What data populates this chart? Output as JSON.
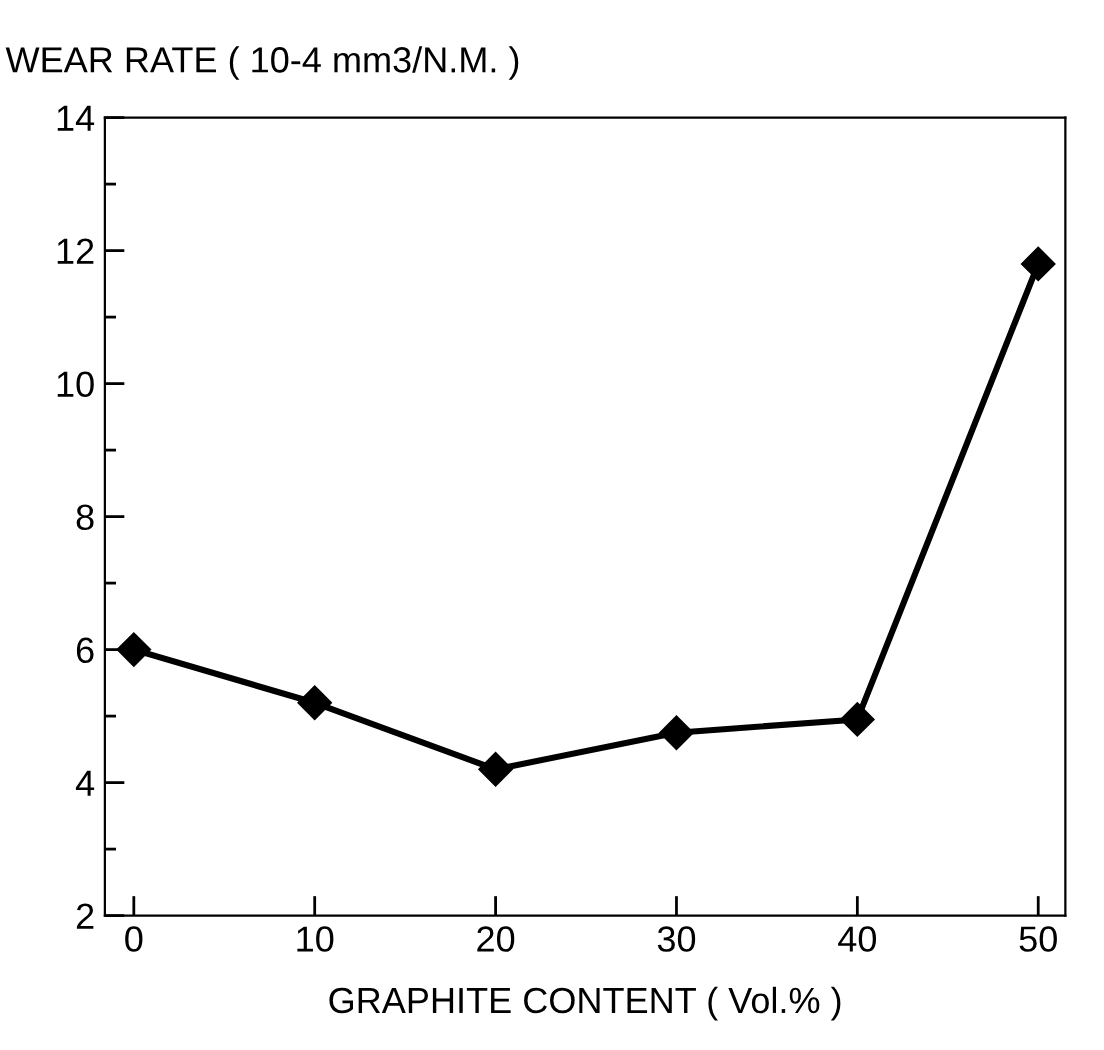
{
  "chart_data": {
    "type": "line",
    "ylabel": "WEAR RATE ( 10-4 mm3/N.M. )",
    "xlabel": "GRAPHITE CONTENT ( Vol.% )",
    "x": [
      0,
      10,
      20,
      30,
      40,
      50
    ],
    "series": [
      {
        "color": "#000000",
        "values": [
          6.0,
          5.2,
          4.2,
          4.75,
          4.95,
          11.8
        ]
      }
    ],
    "marker": "diamond",
    "line_style": "solid",
    "xlim": [
      -1.6,
      51.5
    ],
    "ylim": [
      2,
      14
    ],
    "xticks": [
      0,
      10,
      20,
      30,
      40,
      50
    ],
    "yticks": [
      2,
      {
        "value": 3,
        "label": null
      },
      4,
      {
        "value": 5,
        "label": null
      },
      6,
      {
        "value": 7,
        "label": null
      },
      8,
      {
        "value": 9,
        "label": null
      },
      10,
      {
        "value": 11,
        "label": null
      },
      12,
      {
        "value": 13,
        "label": null
      },
      14
    ],
    "grid": false,
    "legend": false
  }
}
